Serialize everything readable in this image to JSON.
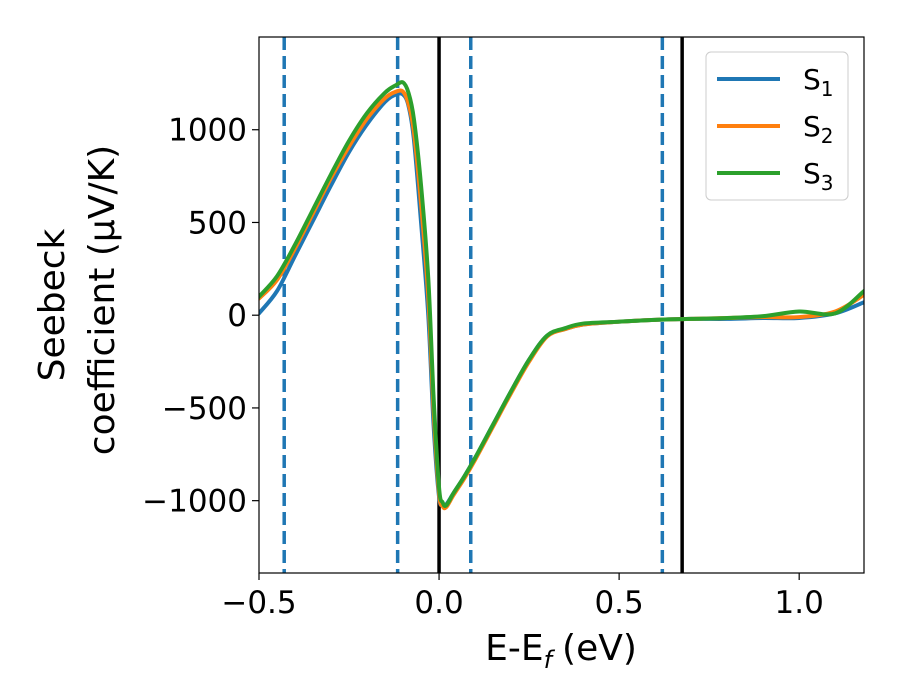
{
  "chart_data": {
    "type": "line",
    "xlabel": "E-E",
    "xlabel_sub": "f",
    "xlabel_unit": "(eV)",
    "ylabel_line1": "Seebeck",
    "ylabel_line2": "coefficient  (μV/K)",
    "xlim": [
      -0.5,
      1.18
    ],
    "ylim": [
      -1390,
      1500
    ],
    "xticks": [
      {
        "value": -0.5,
        "label": "−0.5"
      },
      {
        "value": 0.0,
        "label": "0.0"
      },
      {
        "value": 0.5,
        "label": "0.5"
      },
      {
        "value": 1.0,
        "label": "1.0"
      }
    ],
    "yticks": [
      {
        "value": 1000,
        "label": "1000"
      },
      {
        "value": 500,
        "label": "500"
      },
      {
        "value": 0,
        "label": "0"
      },
      {
        "value": -500,
        "label": "−500"
      },
      {
        "value": -1000,
        "label": "−1000"
      }
    ],
    "grid": false,
    "legend_position": "top-right",
    "vlines_dashed": {
      "color": "#1f77b4",
      "x": [
        -0.43,
        -0.115,
        0.088,
        0.62
      ]
    },
    "vlines_solid": {
      "color": "#000000",
      "x": [
        0.0,
        0.675
      ]
    },
    "series": [
      {
        "name": "S",
        "sub": "1",
        "color": "#1f77b4",
        "x": [
          -0.5,
          -0.45,
          -0.4,
          -0.35,
          -0.3,
          -0.25,
          -0.2,
          -0.15,
          -0.12,
          -0.1,
          -0.085,
          -0.07,
          -0.05,
          -0.03,
          -0.015,
          0.0,
          0.01,
          0.02,
          0.04,
          0.07,
          0.1,
          0.15,
          0.2,
          0.25,
          0.3,
          0.35,
          0.4,
          0.5,
          0.6,
          0.7,
          0.8,
          0.9,
          1.0,
          1.1,
          1.18
        ],
        "y": [
          10,
          130,
          320,
          510,
          700,
          880,
          1030,
          1150,
          1190,
          1190,
          1130,
          950,
          500,
          0,
          -600,
          -980,
          -1020,
          -1020,
          -960,
          -870,
          -770,
          -590,
          -410,
          -240,
          -110,
          -75,
          -50,
          -35,
          -25,
          -20,
          -20,
          -15,
          -15,
          10,
          70
        ]
      },
      {
        "name": "S",
        "sub": "2",
        "color": "#ff7f0e",
        "x": [
          -0.5,
          -0.45,
          -0.4,
          -0.35,
          -0.3,
          -0.25,
          -0.2,
          -0.15,
          -0.12,
          -0.1,
          -0.085,
          -0.07,
          -0.05,
          -0.03,
          -0.015,
          0.0,
          0.01,
          0.02,
          0.04,
          0.07,
          0.1,
          0.15,
          0.2,
          0.25,
          0.3,
          0.35,
          0.4,
          0.5,
          0.6,
          0.7,
          0.8,
          0.9,
          1.0,
          1.1,
          1.18
        ],
        "y": [
          90,
          190,
          360,
          550,
          740,
          910,
          1060,
          1170,
          1205,
          1205,
          1140,
          990,
          600,
          100,
          -520,
          -960,
          -1030,
          -1035,
          -970,
          -880,
          -780,
          -600,
          -420,
          -250,
          -115,
          -75,
          -50,
          -35,
          -25,
          -20,
          -15,
          -10,
          -10,
          20,
          110
        ]
      },
      {
        "name": "S",
        "sub": "3",
        "color": "#2ca02c",
        "x": [
          -0.5,
          -0.45,
          -0.4,
          -0.35,
          -0.3,
          -0.25,
          -0.2,
          -0.15,
          -0.12,
          -0.1,
          -0.085,
          -0.07,
          -0.05,
          -0.03,
          -0.015,
          0.0,
          0.01,
          0.02,
          0.04,
          0.07,
          0.1,
          0.15,
          0.2,
          0.25,
          0.3,
          0.35,
          0.4,
          0.5,
          0.6,
          0.7,
          0.8,
          0.9,
          1.0,
          1.1,
          1.18
        ],
        "y": [
          100,
          210,
          380,
          570,
          760,
          940,
          1090,
          1200,
          1240,
          1255,
          1200,
          1060,
          700,
          200,
          -450,
          -930,
          -1010,
          -1025,
          -960,
          -870,
          -770,
          -590,
          -410,
          -240,
          -110,
          -70,
          -45,
          -35,
          -25,
          -20,
          -15,
          -5,
          20,
          10,
          130
        ]
      }
    ]
  }
}
